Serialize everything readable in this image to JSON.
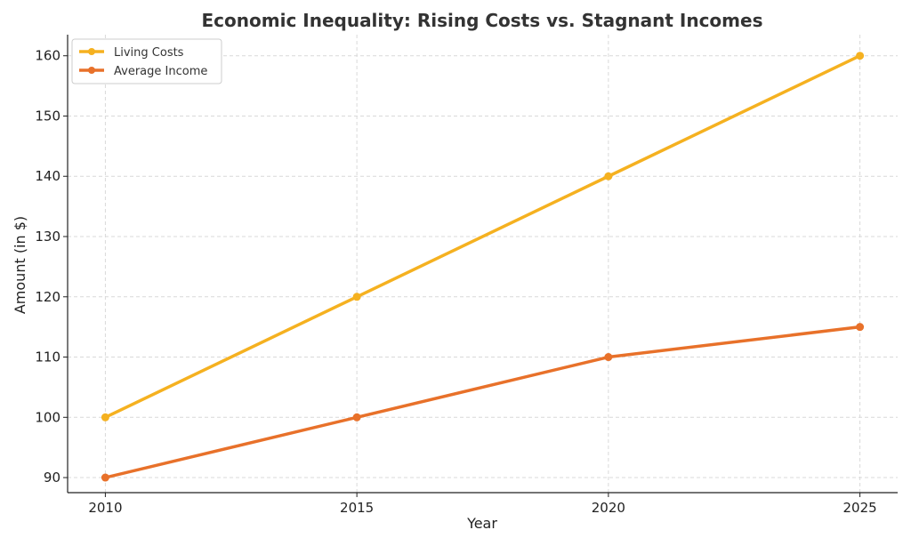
{
  "chart_data": {
    "type": "line",
    "title": "Economic Inequality: Rising Costs vs. Stagnant Incomes",
    "xlabel": "Year",
    "ylabel": "Amount (in $)",
    "x": [
      2010,
      2015,
      2020,
      2025
    ],
    "xticks": [
      2010,
      2015,
      2020,
      2025
    ],
    "xlim": [
      2009.25,
      2025.75
    ],
    "yticks": [
      90,
      100,
      110,
      120,
      130,
      140,
      150,
      160
    ],
    "ylim": [
      87.5,
      163.5
    ],
    "grid": true,
    "legend_position": "top-left",
    "series": [
      {
        "name": "Living Costs",
        "values": [
          100,
          120,
          140,
          160
        ],
        "color": "#F5B120"
      },
      {
        "name": "Average Income",
        "values": [
          90,
          100,
          110,
          115
        ],
        "color": "#E8712A"
      }
    ]
  }
}
